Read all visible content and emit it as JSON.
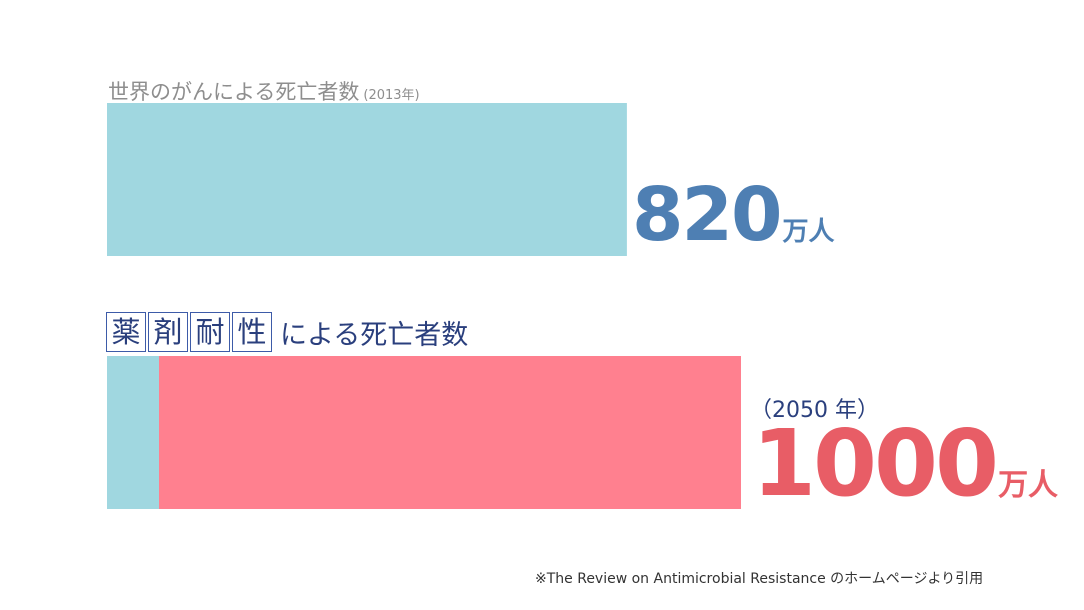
{
  "chart_data": {
    "type": "bar",
    "orientation": "horizontal",
    "max_value": 1000,
    "bars": [
      {
        "label": "世界のがんによる死亡者数",
        "year": "(2013年)",
        "segments": [
          {
            "value": 820,
            "color": "#a0d7e0"
          }
        ],
        "value_text": "820",
        "unit": "万人",
        "value_color": "#4e7fb3"
      },
      {
        "label_boxed": [
          "薬",
          "剤",
          "耐",
          "性"
        ],
        "label_rest": "による死亡者数",
        "year": "（2050 年）",
        "segments": [
          {
            "value": 82,
            "color": "#a0d7e0"
          },
          {
            "value": 918,
            "color": "#ff808f"
          }
        ],
        "value_text": "1000",
        "unit": "万人",
        "value_color": "#e85d66"
      }
    ]
  },
  "source_note": "※The Review on Antimicrobial Resistance のホームページより引用"
}
